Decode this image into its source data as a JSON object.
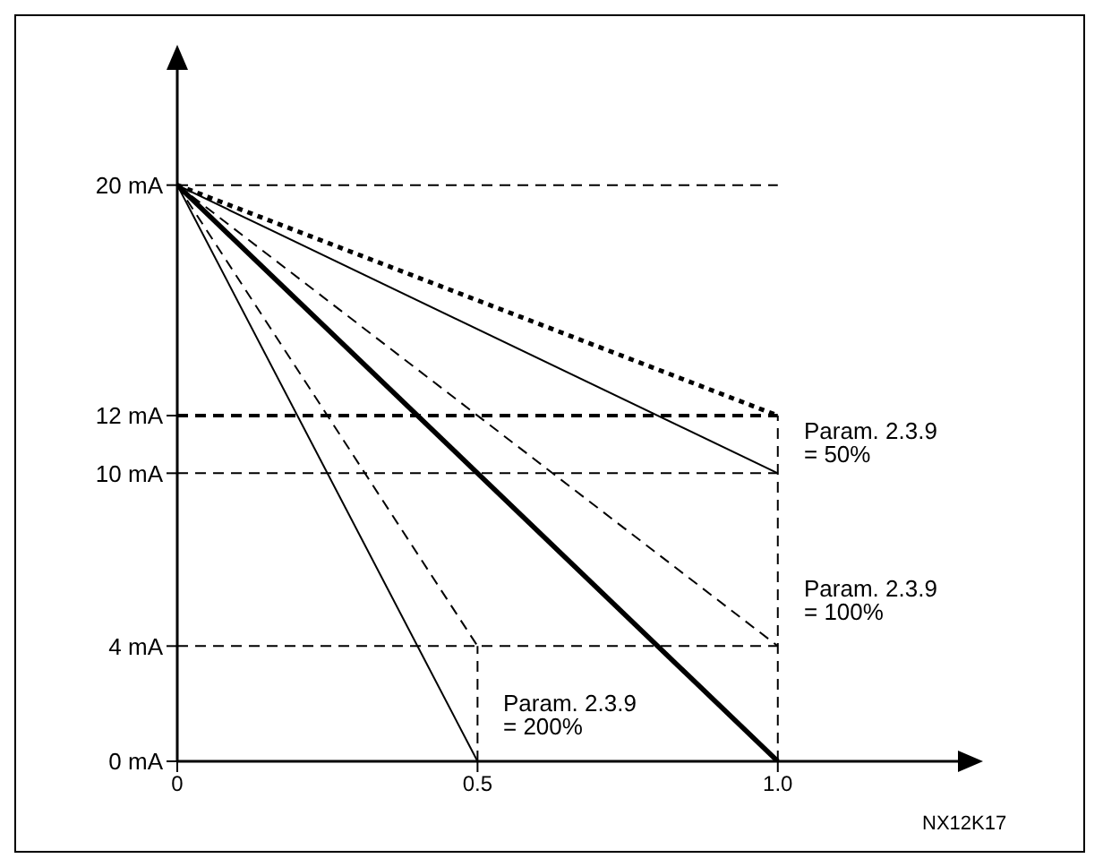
{
  "chart_data": {
    "type": "line",
    "xlim": [
      0,
      1.3
    ],
    "ylim": [
      0,
      24
    ],
    "xticks": [
      0,
      0.5,
      {
        "value": 1,
        "label": "1.0"
      }
    ],
    "yticks": [
      {
        "value": 0,
        "label": "0 mA"
      },
      {
        "value": 4,
        "label": "4 mA"
      },
      {
        "value": 10,
        "label": "10 mA"
      },
      {
        "value": 12,
        "label": "12 mA"
      },
      {
        "value": 20,
        "label": "20 mA"
      }
    ],
    "marker": "none",
    "series": [
      {
        "x": [
          0,
          1
        ],
        "values": [
          20,
          12
        ],
        "color": "#000000",
        "line_style": "dotted"
      },
      {
        "x": [
          0,
          1
        ],
        "values": [
          20,
          10
        ],
        "color": "#000000",
        "line_style": "solid"
      },
      {
        "x": [
          0,
          1
        ],
        "values": [
          20,
          4
        ],
        "color": "#000000",
        "line_style": "dashed"
      },
      {
        "x": [
          0,
          1
        ],
        "values": [
          20,
          0
        ],
        "color": "#000000",
        "line_style": "solid"
      },
      {
        "x": [
          0,
          0.5
        ],
        "values": [
          20,
          4
        ],
        "color": "#000000",
        "line_style": "dashed"
      },
      {
        "x": [
          0,
          0.5
        ],
        "values": [
          20,
          0
        ],
        "color": "#000000",
        "line_style": "solid"
      }
    ],
    "ref_lines": [
      {
        "axis": "y",
        "value": 20,
        "color": "#000000",
        "line_style": "dashed"
      },
      {
        "axis": "y",
        "value": 12,
        "color": "#000000",
        "line_style": "dashed"
      },
      {
        "axis": "y",
        "value": 10,
        "color": "#000000",
        "line_style": "dashed"
      },
      {
        "axis": "y",
        "value": 4,
        "color": "#000000",
        "line_style": "dashed"
      },
      {
        "axis": "x",
        "value": 0.5,
        "color": "#000000",
        "line_style": "dashed"
      },
      {
        "axis": "x",
        "value": 1,
        "color": "#000000",
        "line_style": "dashed"
      }
    ],
    "annotations": [
      "Param. 2.3.9\n= 50%",
      "Param. 2.3.9\n= 100%",
      "Param. 2.3.9\n= 200%",
      "NX12K17"
    ]
  }
}
